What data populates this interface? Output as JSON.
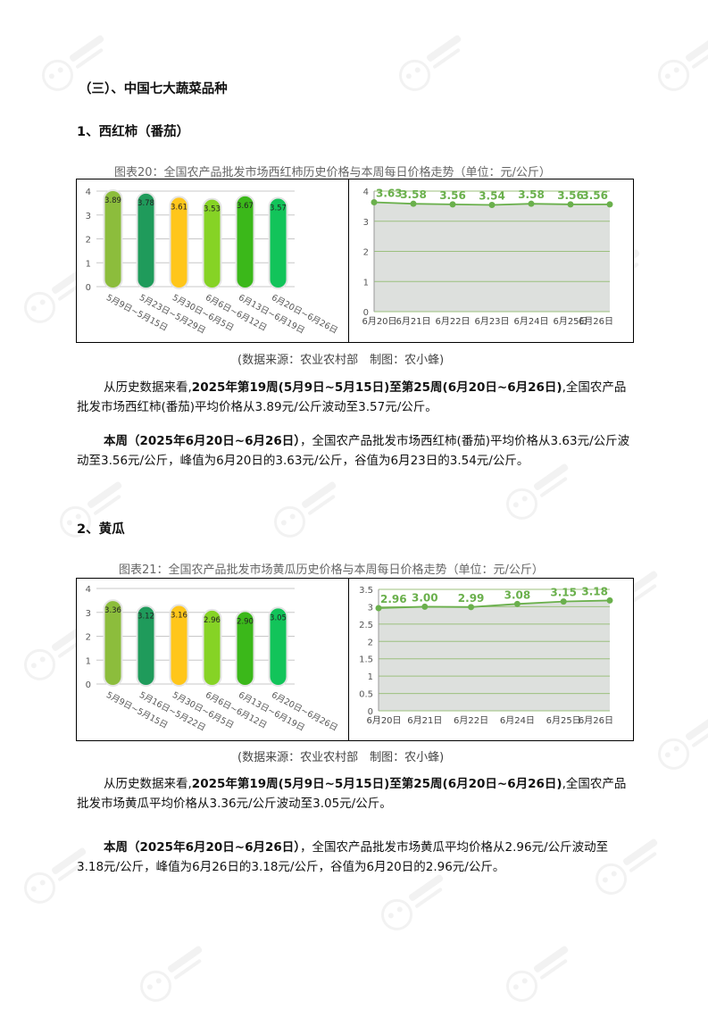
{
  "section_heading": "（三）、中国七大蔬菜品种",
  "colors": {
    "pill_colors": [
      "#8cbd3c",
      "#1f9b5b",
      "#ffc61a",
      "#86d325",
      "#3bb81a",
      "#12c45a"
    ],
    "line_color": "#6ab04c",
    "area_fill": "#dde0dd"
  },
  "items": [
    {
      "heading": "1、西红柿（番茄）",
      "figure_title": "图表20：全国农产品批发市场西红柿历史价格与本周每日价格走势（单位：元/公斤）",
      "source": "(数据来源：农业农村部　制图：农小蜂)",
      "para1_prefix": "从历史数据来看,",
      "para1_bold": "2025年第19周(5月9日~5月15日)至第25周(6月20日~6月26日)",
      "para1_suffix": ",全国农产品批发市场西红柿(番茄)平均价格从3.89元/公斤波动至3.57元/公斤。",
      "para2_bold": "本周（2025年6月20日~6月26日）",
      "para2_suffix": "，全国农产品批发市场西红柿(番茄)平均价格从3.63元/公斤波动至3.56元/公斤，峰值为6月20日的3.63元/公斤，谷值为6月23日的3.54元/公斤。"
    },
    {
      "heading": "2、黄瓜",
      "figure_title": "图表21：全国农产品批发市场黄瓜历史价格与本周每日价格走势（单位：元/公斤）",
      "source": "(数据来源：农业农村部　制图：农小蜂)",
      "para1_prefix": "从历史数据来看,",
      "para1_bold": "2025年第19周(5月9日~5月15日)至第25周(6月20日~6月26日)",
      "para1_suffix": ",全国农产品批发市场黄瓜平均价格从3.36元/公斤波动至3.05元/公斤。",
      "para2_bold": "本周（2025年6月20日~6月26日）",
      "para2_suffix": "，全国农产品批发市场黄瓜平均价格从2.96元/公斤波动至3.18元/公斤，峰值为6月26日的3.18元/公斤，谷值为6月20日的2.96元/公斤。"
    }
  ],
  "chart_data": [
    {
      "type": "bar",
      "categories": [
        "5月9日~5月15日",
        "5月23日~5月29日",
        "5月30日~6月5日",
        "6月6日~6月12日",
        "6月13日~6月19日",
        "6月20日~6月26日"
      ],
      "tick_labels": [
        "5月9日~5月15日",
        "5月23日~5月29日",
        "5月30日~6月5日",
        "6月6日~6月12日",
        "6月13日~6月19日",
        "6月20日~6月26日"
      ],
      "values": [
        3.89,
        3.78,
        3.61,
        3.53,
        3.67,
        3.57
      ],
      "value_labels": [
        "3.89",
        "3.78",
        "3.61",
        "3.53",
        "3.67",
        "3.57"
      ],
      "ylim": [
        0,
        4
      ],
      "yticks": [
        "0",
        "1",
        "2",
        "3",
        "4"
      ],
      "grid": true
    },
    {
      "type": "area",
      "x": [
        "6月20日",
        "6月21日",
        "6月22日",
        "6月23日",
        "6月24日",
        "6月25日",
        "6月26日"
      ],
      "values": [
        3.63,
        3.58,
        3.56,
        3.54,
        3.58,
        3.56,
        3.56
      ],
      "value_labels": [
        "3.63",
        "3.58",
        "3.56",
        "3.54",
        "3.58",
        "3.56",
        "3.56"
      ],
      "ylim": [
        0,
        4
      ],
      "yticks": [
        "0",
        "1",
        "2",
        "3",
        "4"
      ],
      "grid": true
    },
    {
      "type": "bar",
      "categories": [
        "5月9日~5月15日",
        "5月16日~5月22日",
        "5月30日~6月5日",
        "6月6日~6月12日",
        "6月13日~6月19日",
        "6月20日~6月26日"
      ],
      "tick_labels": [
        "5月9日~5月15日",
        "5月16日~5月22日",
        "5月30日~6月5日",
        "6月6日~6月12日",
        "6月13日~6月19日",
        "6月20日~6月26日"
      ],
      "values": [
        3.36,
        3.12,
        3.16,
        2.96,
        2.9,
        3.05
      ],
      "value_labels": [
        "3.36",
        "3.12",
        "3.16",
        "2.96",
        "2.90",
        "3.05"
      ],
      "ylim": [
        0,
        4
      ],
      "yticks": [
        "0",
        "1",
        "2",
        "3",
        "4"
      ],
      "grid": true
    },
    {
      "type": "area",
      "x": [
        "6月20日",
        "6月21日",
        "6月22日",
        "6月24日",
        "6月25日",
        "6月26日"
      ],
      "values": [
        2.96,
        3.0,
        2.99,
        3.08,
        3.15,
        3.18
      ],
      "value_labels": [
        "2.96",
        "3.00",
        "2.99",
        "3.08",
        "3.15",
        "3.18"
      ],
      "ylim": [
        0,
        3.5
      ],
      "yticks": [
        "0",
        "0.5",
        "1",
        "1.5",
        "2",
        "2.5",
        "3",
        "3.5"
      ],
      "grid": true
    }
  ]
}
